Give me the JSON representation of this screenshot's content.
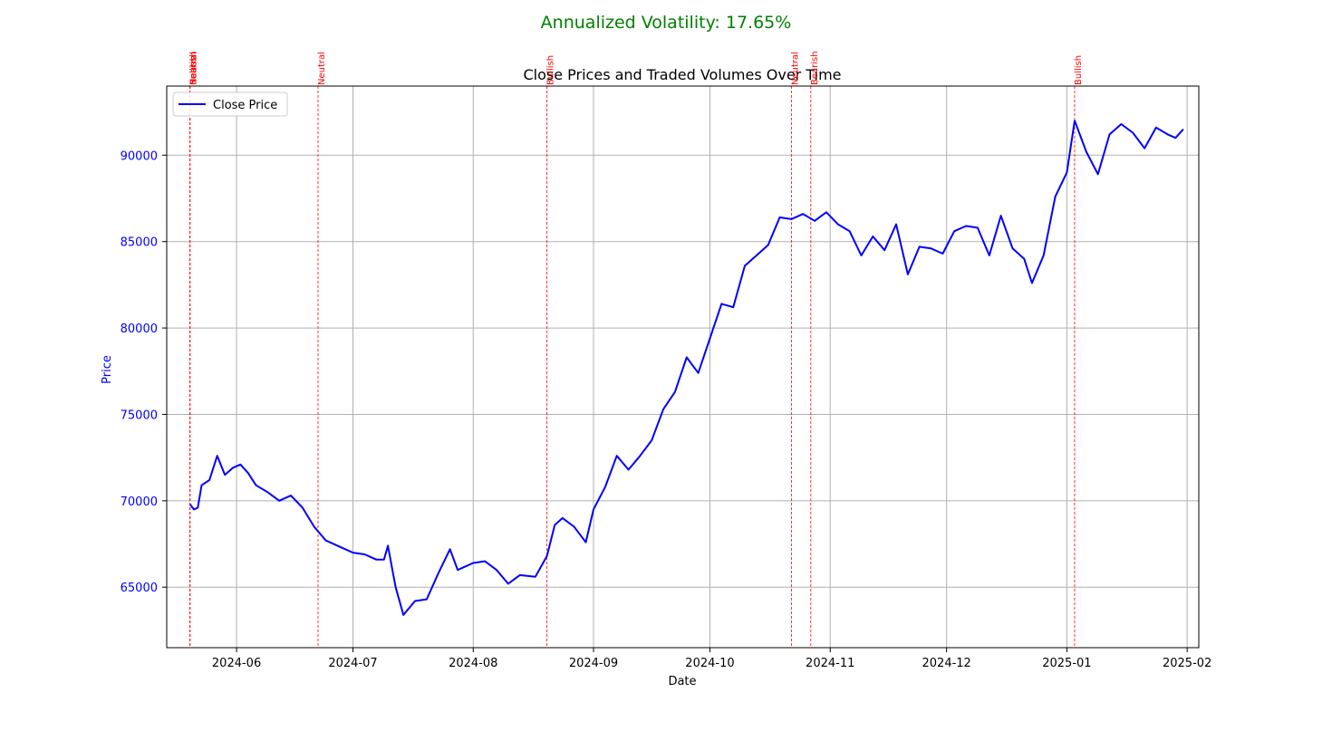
{
  "suptitle": "Annualized Volatility: 17.65%",
  "colors": {
    "suptitle": "#008000",
    "price_line": "#0000ff",
    "price_axis": "#0000ff",
    "annotation": "#ff0000",
    "grid": "#b0b0b0"
  },
  "chart_data": {
    "type": "line",
    "title": "Close Prices and Traded Volumes Over Time",
    "xlabel": "Date",
    "ylabel": "Price",
    "grid": true,
    "legend": {
      "position": "top-left",
      "entries": [
        "Close Price"
      ]
    },
    "x_ticks": [
      "2024-06",
      "2024-07",
      "2024-08",
      "2024-09",
      "2024-10",
      "2024-11",
      "2024-12",
      "2025-01",
      "2025-02"
    ],
    "y_ticks": [
      65000,
      70000,
      75000,
      80000,
      85000,
      90000
    ],
    "xlim": [
      "2024-05-14",
      "2025-02-04"
    ],
    "ylim": [
      61500,
      94000
    ],
    "series": [
      {
        "name": "Close Price",
        "x": [
          "2024-05-20",
          "2024-05-21",
          "2024-05-22",
          "2024-05-23",
          "2024-05-25",
          "2024-05-27",
          "2024-05-29",
          "2024-05-31",
          "2024-06-02",
          "2024-06-04",
          "2024-06-06",
          "2024-06-09",
          "2024-06-12",
          "2024-06-15",
          "2024-06-18",
          "2024-06-21",
          "2024-06-24",
          "2024-06-27",
          "2024-07-01",
          "2024-07-04",
          "2024-07-07",
          "2024-07-09",
          "2024-07-10",
          "2024-07-12",
          "2024-07-14",
          "2024-07-17",
          "2024-07-20",
          "2024-07-23",
          "2024-07-26",
          "2024-07-28",
          "2024-08-01",
          "2024-08-04",
          "2024-08-07",
          "2024-08-10",
          "2024-08-13",
          "2024-08-17",
          "2024-08-20",
          "2024-08-22",
          "2024-08-24",
          "2024-08-27",
          "2024-08-30",
          "2024-09-01",
          "2024-09-04",
          "2024-09-07",
          "2024-09-10",
          "2024-09-13",
          "2024-09-16",
          "2024-09-19",
          "2024-09-22",
          "2024-09-25",
          "2024-09-28",
          "2024-10-01",
          "2024-10-04",
          "2024-10-07",
          "2024-10-10",
          "2024-10-13",
          "2024-10-16",
          "2024-10-19",
          "2024-10-22",
          "2024-10-25",
          "2024-10-28",
          "2024-10-31",
          "2024-11-03",
          "2024-11-06",
          "2024-11-09",
          "2024-11-12",
          "2024-11-15",
          "2024-11-18",
          "2024-11-21",
          "2024-11-24",
          "2024-11-27",
          "2024-11-30",
          "2024-12-03",
          "2024-12-06",
          "2024-12-09",
          "2024-12-12",
          "2024-12-15",
          "2024-12-18",
          "2024-12-21",
          "2024-12-23",
          "2024-12-26",
          "2024-12-29",
          "2025-01-01",
          "2025-01-03",
          "2025-01-06",
          "2025-01-09",
          "2025-01-12",
          "2025-01-15",
          "2025-01-18",
          "2025-01-21",
          "2025-01-24",
          "2025-01-27",
          "2025-01-29",
          "2025-01-31"
        ],
        "values": [
          69800,
          69500,
          69600,
          70900,
          71200,
          72600,
          71500,
          71900,
          72100,
          71600,
          70900,
          70500,
          70000,
          70300,
          69600,
          68500,
          67700,
          67400,
          67000,
          66900,
          66600,
          66600,
          67400,
          65000,
          63400,
          64200,
          64300,
          65800,
          67200,
          66000,
          66400,
          66500,
          66000,
          65200,
          65700,
          65600,
          66800,
          68600,
          69000,
          68500,
          67600,
          69500,
          70800,
          72600,
          71800,
          72600,
          73500,
          75300,
          76300,
          78300,
          77400,
          79400,
          81400,
          81200,
          83600,
          84200,
          84800,
          86400,
          86300,
          86600,
          86200,
          86700,
          86000,
          85600,
          84200,
          85300,
          84500,
          86000,
          83100,
          84700,
          84600,
          84300,
          85600,
          85900,
          85800,
          84200,
          86500,
          84600,
          84000,
          82600,
          84200,
          87600,
          89000,
          92000,
          90200,
          88900,
          91200,
          91800,
          91300,
          90400,
          91600,
          91200,
          91000,
          91500
        ]
      }
    ],
    "annotations": [
      {
        "date": "2024-05-20",
        "label": "Bullish"
      },
      {
        "date": "2024-05-20",
        "label": "Neutral"
      },
      {
        "date": "2024-05-20",
        "label": "Bearish"
      },
      {
        "date": "2024-06-22",
        "label": "Neutral"
      },
      {
        "date": "2024-08-20",
        "label": "Bullish"
      },
      {
        "date": "2024-10-22",
        "label": "Neutral"
      },
      {
        "date": "2024-10-27",
        "label": "Bearish"
      },
      {
        "date": "2025-01-03",
        "label": "Bullish"
      }
    ]
  }
}
